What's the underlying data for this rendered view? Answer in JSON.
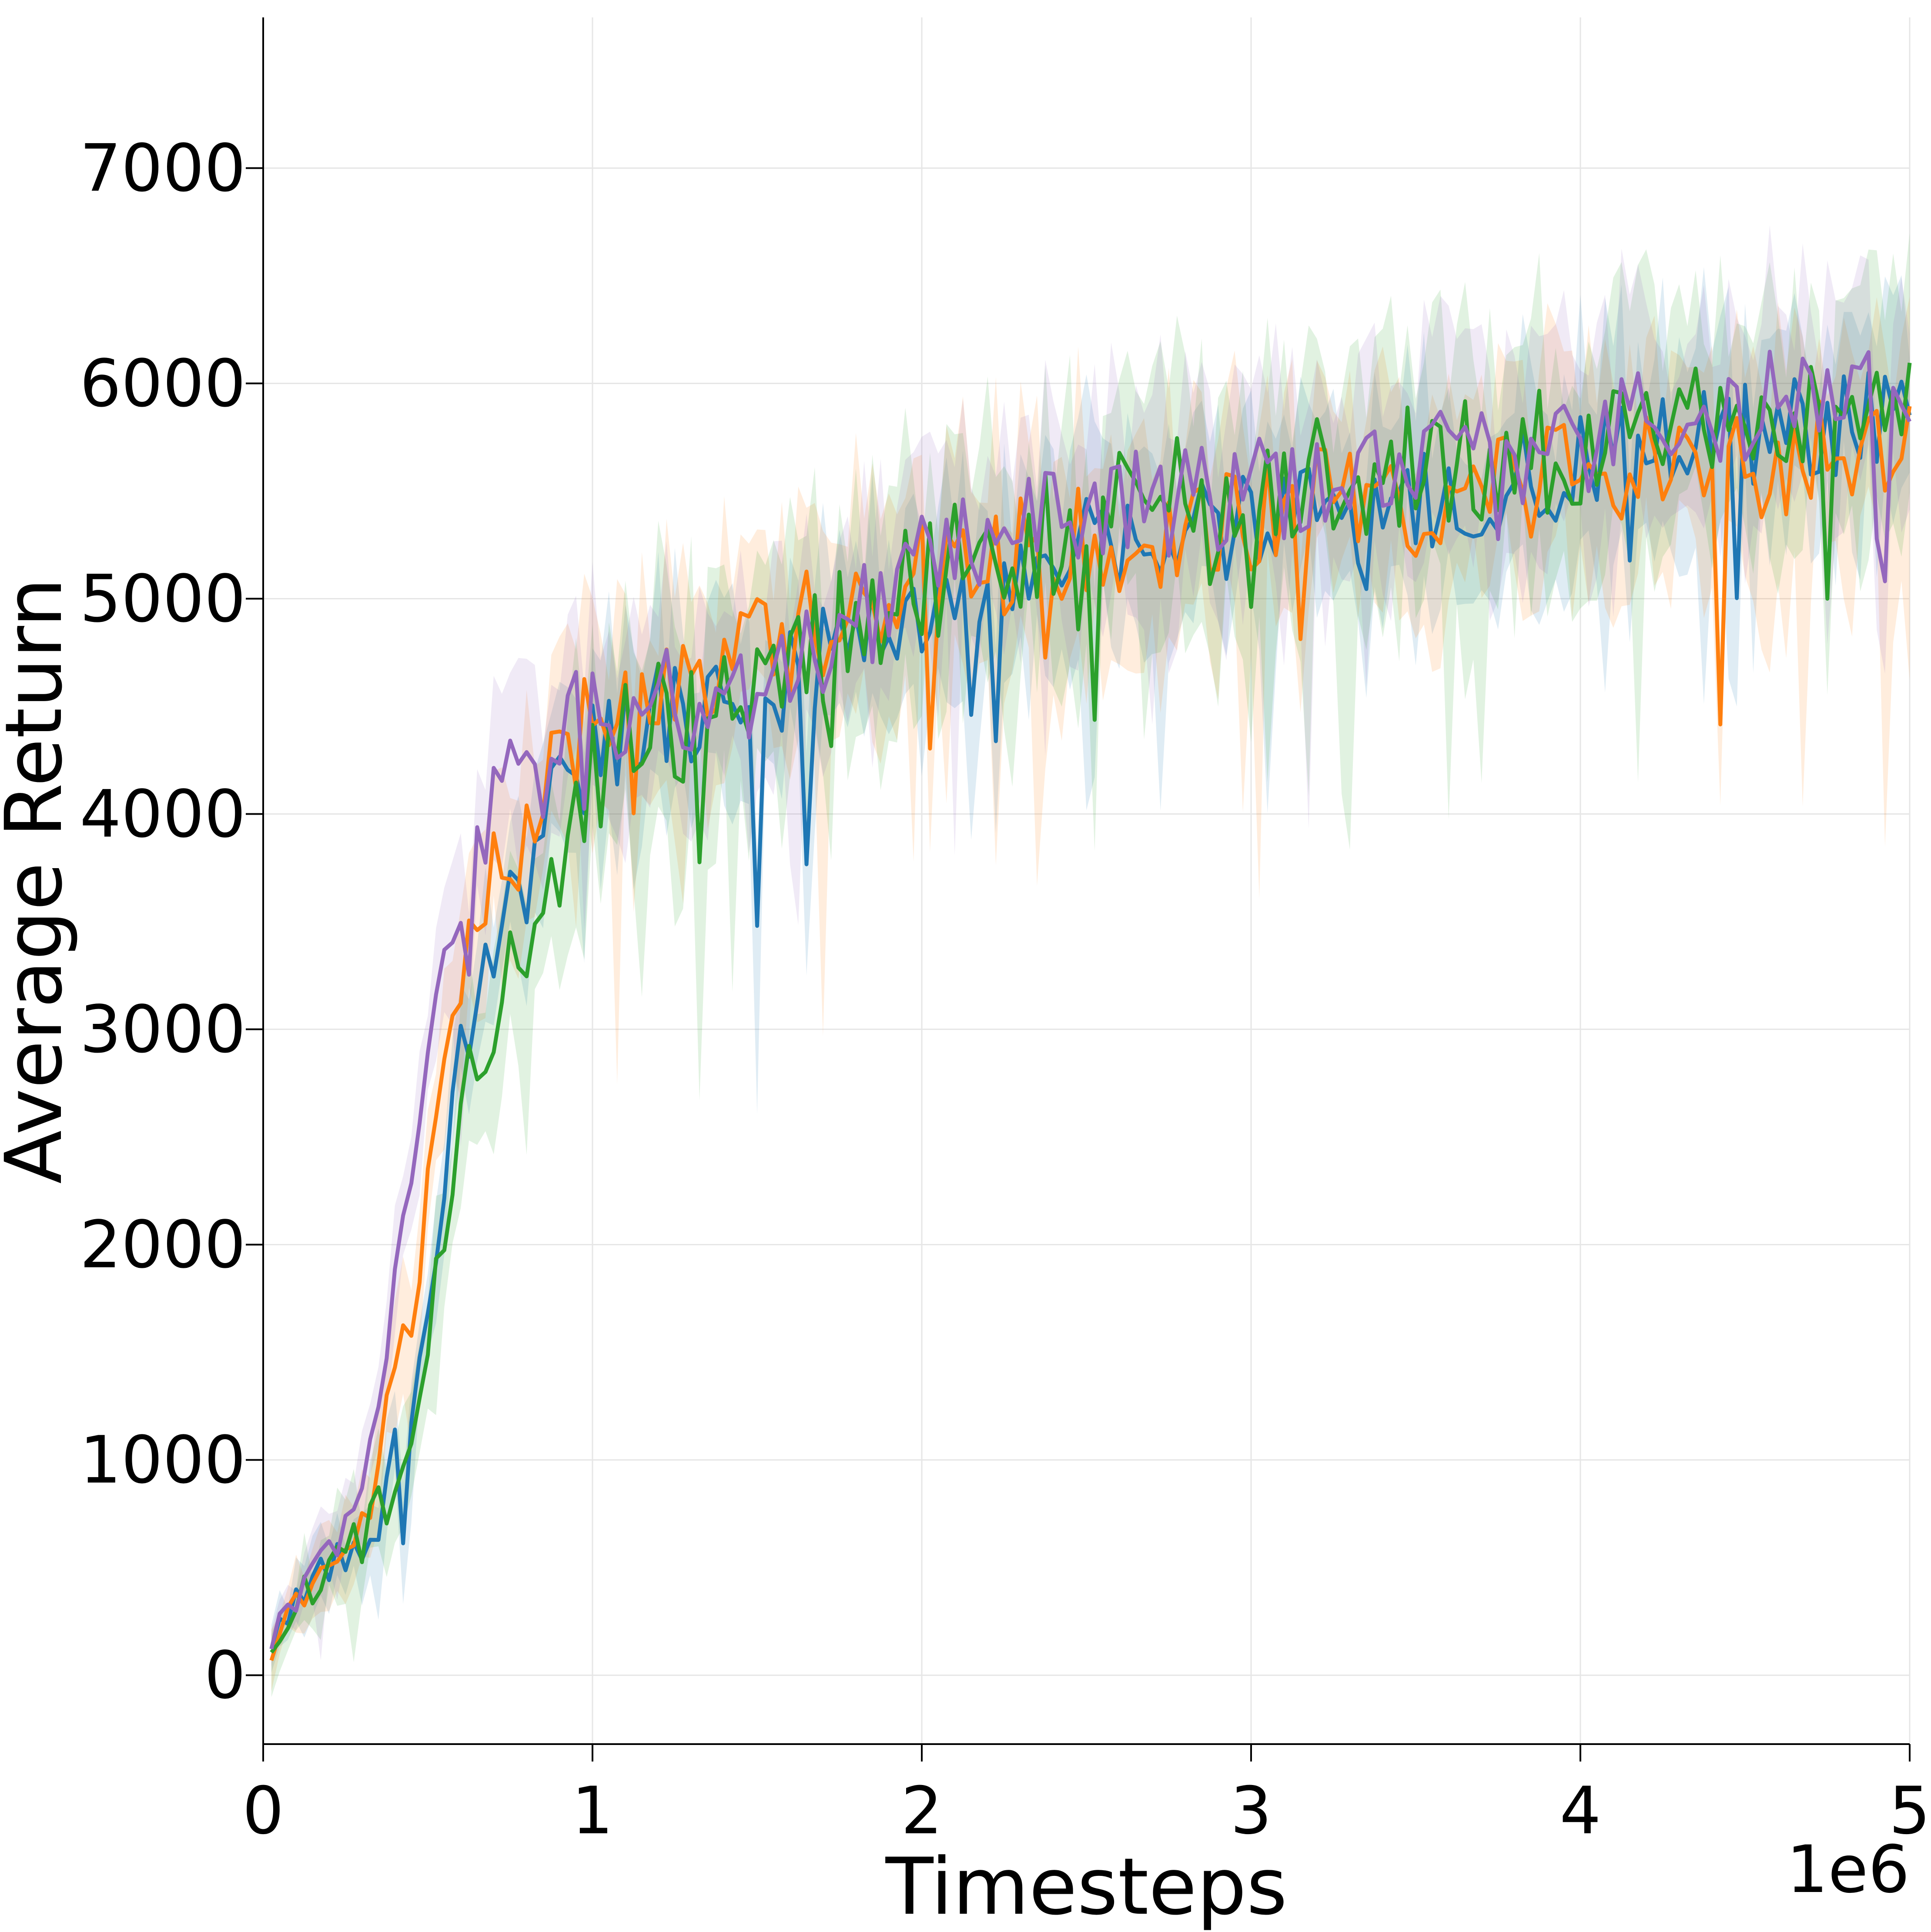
{
  "chart_data": {
    "type": "line",
    "title": "",
    "xlabel": "Timesteps",
    "ylabel": "Average Return",
    "x_offset_label": "1e6",
    "xlim": [
      0,
      5000000
    ],
    "ylim": [
      -320,
      7700
    ],
    "x_ticks": [
      0,
      1000000,
      2000000,
      3000000,
      4000000,
      5000000
    ],
    "x_tick_labels": [
      "0",
      "1",
      "2",
      "3",
      "4",
      "5"
    ],
    "y_ticks": [
      0,
      1000,
      2000,
      3000,
      4000,
      5000,
      6000,
      7000
    ],
    "y_tick_labels": [
      "0",
      "1000",
      "2000",
      "3000",
      "4000",
      "5000",
      "6000",
      "7000"
    ],
    "grid": true,
    "legend": "none",
    "x_step": 25000,
    "x_start": 25000,
    "series": [
      {
        "color": "#1f77b4",
        "anchors": [
          [
            25000,
            180
          ],
          [
            100000,
            360
          ],
          [
            200000,
            480
          ],
          [
            300000,
            620
          ],
          [
            350000,
            760
          ],
          [
            400000,
            1000
          ],
          [
            450000,
            1250
          ],
          [
            500000,
            1750
          ],
          [
            550000,
            2250
          ],
          [
            600000,
            2900
          ],
          [
            700000,
            3400
          ],
          [
            800000,
            3700
          ],
          [
            900000,
            4100
          ],
          [
            1000000,
            4250
          ],
          [
            1200000,
            4450
          ],
          [
            1500000,
            4550
          ],
          [
            2000000,
            5000
          ],
          [
            2500000,
            5250
          ],
          [
            3000000,
            5350
          ],
          [
            3500000,
            5450
          ],
          [
            4000000,
            5600
          ],
          [
            4500000,
            5750
          ],
          [
            5000000,
            5900
          ]
        ],
        "noise": 260,
        "band": 420
      },
      {
        "color": "#ff7f0e",
        "anchors": [
          [
            25000,
            120
          ],
          [
            100000,
            380
          ],
          [
            200000,
            500
          ],
          [
            300000,
            700
          ],
          [
            350000,
            1000
          ],
          [
            400000,
            1400
          ],
          [
            450000,
            1700
          ],
          [
            500000,
            2200
          ],
          [
            550000,
            2800
          ],
          [
            600000,
            3200
          ],
          [
            700000,
            3700
          ],
          [
            800000,
            3900
          ],
          [
            900000,
            4200
          ],
          [
            1000000,
            4450
          ],
          [
            1200000,
            4600
          ],
          [
            1500000,
            4750
          ],
          [
            2000000,
            5150
          ],
          [
            2500000,
            5250
          ],
          [
            3000000,
            5400
          ],
          [
            3500000,
            5450
          ],
          [
            4000000,
            5550
          ],
          [
            4500000,
            5600
          ],
          [
            5000000,
            5700
          ]
        ],
        "noise": 280,
        "band": 480
      },
      {
        "color": "#2ca02c",
        "anchors": [
          [
            25000,
            150
          ],
          [
            100000,
            350
          ],
          [
            200000,
            470
          ],
          [
            300000,
            600
          ],
          [
            350000,
            760
          ],
          [
            400000,
            950
          ],
          [
            450000,
            1150
          ],
          [
            500000,
            1600
          ],
          [
            550000,
            2100
          ],
          [
            600000,
            2700
          ],
          [
            700000,
            3100
          ],
          [
            800000,
            3400
          ],
          [
            900000,
            3800
          ],
          [
            1000000,
            4200
          ],
          [
            1200000,
            4400
          ],
          [
            1500000,
            4550
          ],
          [
            2000000,
            5100
          ],
          [
            2500000,
            5350
          ],
          [
            3000000,
            5550
          ],
          [
            3500000,
            5600
          ],
          [
            4000000,
            5700
          ],
          [
            4500000,
            5850
          ],
          [
            5000000,
            5950
          ]
        ],
        "noise": 300,
        "band": 520
      },
      {
        "color": "#9467bd",
        "anchors": [
          [
            25000,
            150
          ],
          [
            100000,
            380
          ],
          [
            200000,
            520
          ],
          [
            300000,
            800
          ],
          [
            350000,
            1300
          ],
          [
            400000,
            1800
          ],
          [
            450000,
            2300
          ],
          [
            500000,
            2900
          ],
          [
            550000,
            3300
          ],
          [
            600000,
            3500
          ],
          [
            700000,
            4100
          ],
          [
            800000,
            4400
          ],
          [
            900000,
            4450
          ],
          [
            1000000,
            4500
          ],
          [
            1200000,
            4550
          ],
          [
            1500000,
            4500
          ],
          [
            2000000,
            5150
          ],
          [
            2500000,
            5400
          ],
          [
            3000000,
            5500
          ],
          [
            3500000,
            5600
          ],
          [
            4000000,
            5750
          ],
          [
            4500000,
            5900
          ],
          [
            5000000,
            6050
          ]
        ],
        "noise": 260,
        "band": 440
      }
    ]
  }
}
